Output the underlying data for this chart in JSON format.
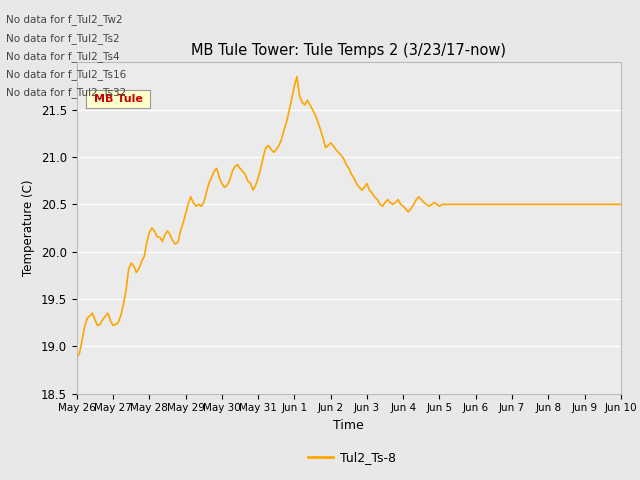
{
  "title": "MB Tule Tower: Tule Temps 2 (3/23/17-now)",
  "xlabel": "Time",
  "ylabel": "Temperature (C)",
  "ylim": [
    18.5,
    22.0
  ],
  "line_color": "#FFA500",
  "line_label": "Tul2_Ts-8",
  "no_data_texts": [
    "No data for f_Tul2_Tw2",
    "No data for f_Tul2_Ts2",
    "No data for f_Tul2_Ts4",
    "No data for f_Tul2_Ts16",
    "No data for f_Tul2_Ts32"
  ],
  "tooltip_text": "MB Tule",
  "background_color": "#e8e8e8",
  "plot_bg_color": "#ebebeb",
  "grid_color": "#ffffff",
  "x_tick_labels": [
    "May 26",
    "May 27",
    "May 28",
    "May 29",
    "May 30",
    "May 31",
    "Jun 1",
    "Jun 2",
    "Jun 3",
    "Jun 4",
    "Jun 5",
    "Jun 6",
    "Jun 7",
    "Jun 8",
    "Jun 9",
    "Jun 10"
  ],
  "x_tick_positions": [
    0,
    1,
    2,
    3,
    4,
    5,
    6,
    7,
    8,
    9,
    10,
    11,
    12,
    13,
    14,
    15
  ],
  "y_ticks": [
    18.5,
    19.0,
    19.5,
    20.0,
    20.5,
    21.0,
    21.5
  ],
  "data_x": [
    0.0,
    0.07,
    0.14,
    0.21,
    0.29,
    0.36,
    0.43,
    0.5,
    0.57,
    0.64,
    0.71,
    0.79,
    0.86,
    0.93,
    1.0,
    1.07,
    1.14,
    1.21,
    1.29,
    1.36,
    1.43,
    1.5,
    1.57,
    1.64,
    1.71,
    1.79,
    1.86,
    1.93,
    2.0,
    2.07,
    2.14,
    2.21,
    2.29,
    2.36,
    2.43,
    2.5,
    2.57,
    2.64,
    2.71,
    2.79,
    2.86,
    2.93,
    3.0,
    3.07,
    3.14,
    3.21,
    3.29,
    3.36,
    3.43,
    3.5,
    3.57,
    3.64,
    3.71,
    3.79,
    3.86,
    3.93,
    4.0,
    4.07,
    4.14,
    4.21,
    4.29,
    4.36,
    4.43,
    4.5,
    4.57,
    4.64,
    4.71,
    4.79,
    4.86,
    4.93,
    5.0,
    5.07,
    5.14,
    5.21,
    5.29,
    5.36,
    5.43,
    5.5,
    5.57,
    5.64,
    5.71,
    5.79,
    5.86,
    5.93,
    6.0,
    6.07,
    6.14,
    6.21,
    6.29,
    6.36,
    6.43,
    6.5,
    6.57,
    6.64,
    6.71,
    6.79,
    6.86,
    6.93,
    7.0,
    7.07,
    7.14,
    7.21,
    7.29,
    7.36,
    7.43,
    7.5,
    7.57,
    7.64,
    7.71,
    7.79,
    7.86,
    7.93,
    8.0,
    8.07,
    8.14,
    8.21,
    8.29,
    8.36,
    8.43,
    8.5,
    8.57,
    8.64,
    8.71,
    8.79,
    8.86,
    8.93,
    9.0,
    9.07,
    9.14,
    9.21,
    9.29,
    9.36,
    9.43,
    9.5,
    9.57,
    9.64,
    9.71,
    9.79,
    9.86,
    9.93,
    10.0,
    10.07,
    10.14,
    10.21,
    10.29,
    10.36,
    10.43,
    10.5,
    10.57,
    10.64,
    10.71,
    10.79,
    10.86,
    10.93,
    11.0,
    11.07,
    11.14,
    11.21,
    11.29,
    11.36,
    11.43,
    11.5,
    11.57,
    11.64,
    11.71,
    11.79,
    11.86,
    11.93,
    12.0,
    12.07,
    12.14,
    12.21,
    12.29,
    12.36,
    12.43,
    12.5,
    12.57,
    12.64,
    12.71,
    12.79,
    12.86,
    12.93,
    13.0,
    13.07,
    13.14,
    13.21,
    13.29,
    13.36,
    13.43,
    13.5,
    13.57,
    13.64,
    13.71,
    13.79,
    13.86,
    13.93,
    14.0,
    14.07,
    14.14,
    14.21,
    14.29,
    14.36,
    14.43,
    14.5,
    14.57,
    14.64,
    14.71,
    14.79,
    14.86,
    14.93,
    15.0
  ],
  "data_y": [
    18.88,
    18.92,
    19.05,
    19.2,
    19.3,
    19.32,
    19.35,
    19.28,
    19.22,
    19.23,
    19.28,
    19.32,
    19.35,
    19.27,
    19.22,
    19.23,
    19.25,
    19.32,
    19.45,
    19.6,
    19.82,
    19.88,
    19.85,
    19.78,
    19.82,
    19.9,
    19.95,
    20.1,
    20.2,
    20.25,
    20.22,
    20.16,
    20.15,
    20.11,
    20.18,
    20.22,
    20.18,
    20.12,
    20.08,
    20.1,
    20.22,
    20.3,
    20.4,
    20.5,
    20.58,
    20.52,
    20.48,
    20.5,
    20.48,
    20.52,
    20.62,
    20.72,
    20.78,
    20.85,
    20.88,
    20.78,
    20.72,
    20.68,
    20.7,
    20.75,
    20.85,
    20.9,
    20.92,
    20.88,
    20.85,
    20.82,
    20.75,
    20.72,
    20.65,
    20.7,
    20.78,
    20.88,
    21.0,
    21.1,
    21.12,
    21.08,
    21.05,
    21.08,
    21.12,
    21.18,
    21.28,
    21.38,
    21.5,
    21.62,
    21.75,
    21.85,
    21.65,
    21.58,
    21.55,
    21.6,
    21.55,
    21.5,
    21.45,
    21.38,
    21.3,
    21.2,
    21.1,
    21.12,
    21.15,
    21.12,
    21.08,
    21.05,
    21.02,
    20.98,
    20.92,
    20.88,
    20.82,
    20.78,
    20.72,
    20.68,
    20.65,
    20.68,
    20.72,
    20.65,
    20.62,
    20.58,
    20.55,
    20.5,
    20.48,
    20.52,
    20.55,
    20.52,
    20.5,
    20.52,
    20.55,
    20.5,
    20.48,
    20.45,
    20.42,
    20.45,
    20.5,
    20.55,
    20.58,
    20.55,
    20.52,
    20.5,
    20.48,
    20.5,
    20.52,
    20.5,
    20.48,
    20.5,
    20.5,
    20.5,
    20.5,
    20.5,
    20.5,
    20.5,
    20.5,
    20.5,
    20.5,
    20.5,
    20.5,
    20.5,
    20.5,
    20.5,
    20.5,
    20.5,
    20.5,
    20.5,
    20.5,
    20.5,
    20.5,
    20.5,
    20.5,
    20.5,
    20.5,
    20.5,
    20.5,
    20.5,
    20.5,
    20.5,
    20.5,
    20.5,
    20.5,
    20.5,
    20.5,
    20.5,
    20.5,
    20.5,
    20.5,
    20.5,
    20.5,
    20.5,
    20.5,
    20.5,
    20.5,
    20.5,
    20.5,
    20.5,
    20.5,
    20.5,
    20.5,
    20.5,
    20.5,
    20.5,
    20.5,
    20.5,
    20.5,
    20.5,
    20.5,
    20.5,
    20.5,
    20.5,
    20.5,
    20.5,
    20.5,
    20.5,
    20.5,
    20.5,
    20.5
  ]
}
